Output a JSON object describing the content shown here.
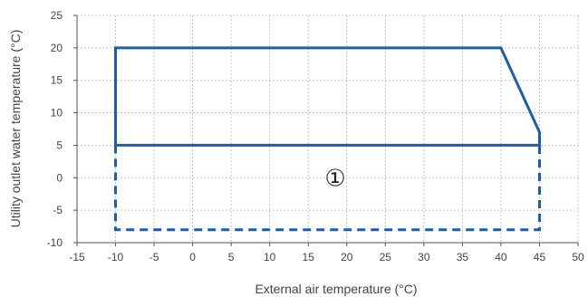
{
  "chart_data": {
    "type": "line",
    "xlabel": "External air temperature (°C)",
    "ylabel": "Utility outlet water temperature (°C)",
    "xlim": [
      -15,
      50
    ],
    "ylim": [
      -10,
      25
    ],
    "x_ticks": [
      -15,
      -10,
      -5,
      0,
      5,
      10,
      15,
      20,
      25,
      30,
      35,
      40,
      45,
      50
    ],
    "y_ticks": [
      -10,
      -5,
      0,
      5,
      10,
      15,
      20,
      25
    ],
    "grid": true,
    "series": [
      {
        "line_style": "solid",
        "color": "#1f5fa0",
        "points": [
          [
            -10,
            5
          ],
          [
            -10,
            20
          ],
          [
            40,
            20
          ],
          [
            45,
            7
          ],
          [
            45,
            5
          ],
          [
            -10,
            5
          ]
        ]
      },
      {
        "line_style": "dashed",
        "color": "#1f5fa0",
        "points": [
          [
            -10,
            5
          ],
          [
            -10,
            -8
          ],
          [
            45,
            -8
          ],
          [
            45,
            5
          ]
        ]
      }
    ],
    "annotations": [
      {
        "text": "①",
        "x": 18.5,
        "y": 0
      }
    ]
  }
}
